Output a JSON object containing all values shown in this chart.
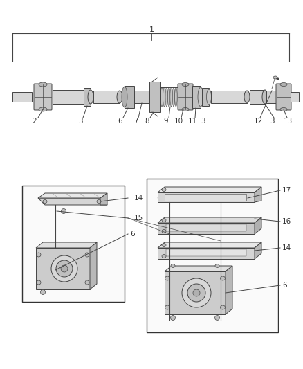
{
  "bg_color": "#ffffff",
  "fig_width": 4.39,
  "fig_height": 5.33,
  "dpi": 100,
  "line_color": "#444444",
  "light_gray": "#d0d0d0",
  "mid_gray": "#b0b0b0",
  "dark_gray": "#888888"
}
